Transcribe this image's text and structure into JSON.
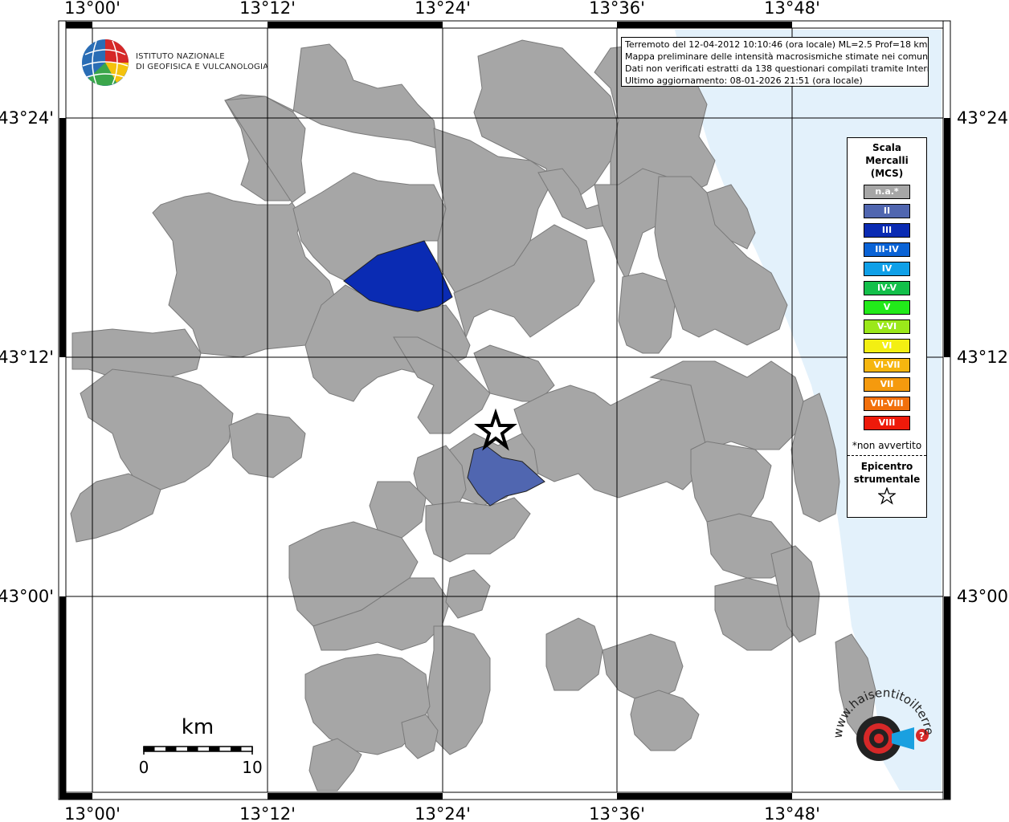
{
  "map": {
    "lon_labels": [
      "13°00'",
      "13°12'",
      "13°24'",
      "13°36'",
      "13°48'"
    ],
    "lat_labels": [
      "43°24'",
      "43°12'",
      "43°00'"
    ]
  },
  "info": {
    "line1": "Terremoto del 12-04-2012 10:10:46 (ora locale) ML=2.5 Prof=18 km",
    "line2": "Mappa preliminare delle intensità macrosismiche stimate nei comuni",
    "line3": "Dati non verificati estratti da 138 questionari compilati tramite Internet.",
    "line4": "Ultimo aggiornamento: 08-01-2026 21:51 (ora locale)"
  },
  "logo": {
    "line1": "ISTITUTO NAZIONALE",
    "line2": "DI GEOFISICA E VULCANOLOGIA"
  },
  "legend": {
    "title_line1": "Scala",
    "title_line2": "Mercalli",
    "title_line3": "(MCS)",
    "items": [
      {
        "label": "n.a.*",
        "color": "#a6a6a6"
      },
      {
        "label": "II",
        "color": "#5066b0"
      },
      {
        "label": "III",
        "color": "#0a2bb3"
      },
      {
        "label": "III-IV",
        "color": "#0a63d6"
      },
      {
        "label": "IV",
        "color": "#0fa0e8"
      },
      {
        "label": "IV-V",
        "color": "#13c04a"
      },
      {
        "label": "V",
        "color": "#22ea1a"
      },
      {
        "label": "V-VI",
        "color": "#9be81a"
      },
      {
        "label": "VI",
        "color": "#f3ef12"
      },
      {
        "label": "VI-VII",
        "color": "#f6b60f"
      },
      {
        "label": "VII",
        "color": "#f59a0e"
      },
      {
        "label": "VII-VIII",
        "color": "#f2700c"
      },
      {
        "label": "VIII",
        "color": "#ee1a0a"
      }
    ],
    "note": "*non avvertito",
    "epicenter_line1": "Epicentro",
    "epicenter_line2": "strumentale"
  },
  "scalebar": {
    "unit": "km",
    "min": "0",
    "max": "10"
  },
  "website_logo": {
    "text": "www.haisentitoilterremoto.it"
  },
  "colors": {
    "sea": "#e3f1fb",
    "not_felt": "#a6a6a6",
    "intensity_II": "#5066b0",
    "intensity_III": "#0a2bb3"
  }
}
